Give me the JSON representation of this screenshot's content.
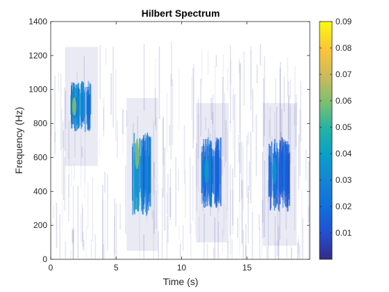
{
  "chart_data": {
    "type": "heatmap",
    "title": "Hilbert Spectrum",
    "xlabel": "Time (s)",
    "ylabel": "Frequency (Hz)",
    "xlim": [
      0,
      19.8
    ],
    "ylim": [
      0,
      1400
    ],
    "xticks": [
      "0",
      "5",
      "10",
      "15"
    ],
    "xtick_values": [
      0,
      5,
      10,
      15
    ],
    "yticks": [
      "0",
      "200",
      "400",
      "600",
      "800",
      "1000",
      "1200",
      "1400"
    ],
    "ytick_values": [
      0,
      200,
      400,
      600,
      800,
      1000,
      1200,
      1400
    ],
    "colorbar": {
      "colormap": "parula",
      "range": [
        0,
        0.09
      ],
      "ticks": [
        "0.01",
        "0.02",
        "0.03",
        "0.04",
        "0.05",
        "0.06",
        "0.07",
        "0.08",
        "0.09"
      ],
      "tick_values": [
        0.01,
        0.02,
        0.03,
        0.04,
        0.05,
        0.06,
        0.07,
        0.08,
        0.09
      ]
    },
    "energy_clusters": [
      {
        "t_start": 1.5,
        "t_end": 3.0,
        "f_low": 750,
        "f_high": 1050,
        "peak_time": 1.8,
        "peak_freq": 900,
        "peak_value": 0.06
      },
      {
        "t_start": 6.2,
        "t_end": 7.6,
        "f_low": 250,
        "f_high": 750,
        "peak_time": 6.6,
        "peak_freq": 620,
        "peak_value": 0.06
      },
      {
        "t_start": 11.5,
        "t_end": 13.0,
        "f_low": 300,
        "f_high": 720,
        "peak_time": 11.9,
        "peak_freq": 520,
        "peak_value": 0.04
      },
      {
        "t_start": 16.6,
        "t_end": 18.2,
        "f_low": 280,
        "f_high": 720,
        "peak_time": 17.1,
        "peak_freq": 520,
        "peak_value": 0.035
      }
    ],
    "background_level": 0.003
  }
}
